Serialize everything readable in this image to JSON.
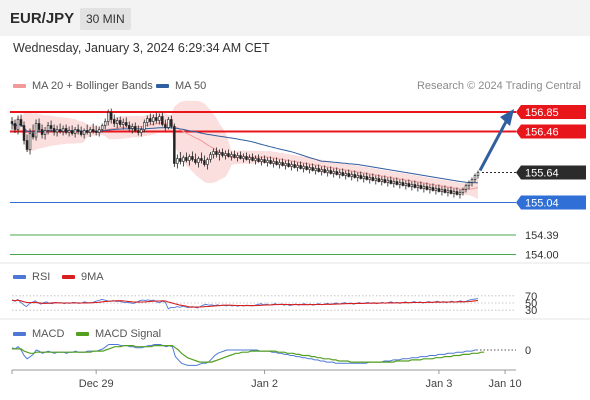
{
  "header": {
    "symbol": "EUR/JPY",
    "timeframe": "30 MIN"
  },
  "datetime": "Wednesday, January 3, 2024 6:29:34 AM CET",
  "credit": "Research © 2024 Trading Central",
  "colors": {
    "bollinger": "#f29a9a",
    "bollinger_band": "#fbdede",
    "ma50": "#2f5f9e",
    "resistance": "#e8151b",
    "support_blue": "#2f6fd6",
    "support_green": "#4aa84a",
    "rsi": "#4f78d6",
    "rsi_ma": "#d62020",
    "macd": "#4f78d6",
    "macd_signal": "#54a020",
    "current": "#2b2b2b",
    "arrow": "#2f5f9e"
  },
  "legend_main": [
    {
      "label": "MA 20 + Bollinger Bands",
      "color": "#f29a9a"
    },
    {
      "label": "MA 50",
      "color": "#2f5f9e"
    }
  ],
  "legend_rsi": [
    {
      "label": "RSI",
      "color": "#4f78d6"
    },
    {
      "label": "9MA",
      "color": "#d62020"
    }
  ],
  "legend_macd": [
    {
      "label": "MACD",
      "color": "#4f78d6"
    },
    {
      "label": "MACD Signal",
      "color": "#54a020"
    }
  ],
  "chart_data": {
    "type": "candlestick",
    "price_range": [
      153.85,
      157.15
    ],
    "levels": [
      {
        "value": "156.85",
        "kind": "resistance",
        "color": "#e8151b"
      },
      {
        "value": "156.46",
        "kind": "resistance",
        "color": "#e8151b"
      },
      {
        "value": "155.64",
        "kind": "current",
        "color": "#2b2b2b"
      },
      {
        "value": "155.04",
        "kind": "support",
        "color": "#2f6fd6"
      },
      {
        "value": "154.39",
        "kind": "support",
        "color": "#4aa84a"
      },
      {
        "value": "154.00",
        "kind": "support",
        "color": "#4aa84a"
      }
    ],
    "forecast_target": 156.85,
    "x_labels": [
      "Dec 29",
      "Jan 2",
      "Jan 3",
      "Jan 10"
    ],
    "x_label_bar_index": [
      28,
      84,
      142,
      164
    ],
    "candles": [
      [
        156.66,
        156.75,
        156.5,
        156.62
      ],
      [
        156.62,
        156.7,
        156.43,
        156.5
      ],
      [
        156.5,
        156.78,
        156.4,
        156.7
      ],
      [
        156.7,
        156.8,
        156.55,
        156.58
      ],
      [
        156.58,
        156.66,
        156.2,
        156.28
      ],
      [
        156.28,
        156.4,
        156.05,
        156.1
      ],
      [
        156.1,
        156.52,
        156.0,
        156.42
      ],
      [
        156.42,
        156.6,
        156.3,
        156.35
      ],
      [
        156.35,
        156.7,
        156.28,
        156.62
      ],
      [
        156.62,
        156.72,
        156.44,
        156.5
      ],
      [
        156.5,
        156.6,
        156.32,
        156.4
      ],
      [
        156.4,
        156.55,
        156.3,
        156.48
      ],
      [
        156.48,
        156.65,
        156.4,
        156.58
      ],
      [
        156.58,
        156.68,
        156.45,
        156.52
      ],
      [
        156.52,
        156.6,
        156.38,
        156.45
      ],
      [
        156.45,
        156.58,
        156.36,
        156.5
      ],
      [
        156.5,
        156.62,
        156.42,
        156.46
      ],
      [
        156.46,
        156.58,
        156.38,
        156.52
      ],
      [
        156.52,
        156.6,
        156.4,
        156.44
      ],
      [
        156.44,
        156.56,
        156.36,
        156.48
      ],
      [
        156.48,
        156.58,
        156.38,
        156.42
      ],
      [
        156.42,
        156.55,
        156.34,
        156.5
      ],
      [
        156.5,
        156.6,
        156.4,
        156.46
      ],
      [
        156.46,
        156.56,
        156.36,
        156.4
      ],
      [
        156.4,
        156.52,
        156.32,
        156.48
      ],
      [
        156.48,
        156.6,
        156.4,
        156.44
      ],
      [
        156.44,
        156.55,
        156.35,
        156.5
      ],
      [
        156.5,
        156.62,
        156.42,
        156.46
      ],
      [
        156.46,
        156.58,
        156.38,
        156.44
      ],
      [
        156.44,
        156.56,
        156.36,
        156.5
      ],
      [
        156.5,
        156.62,
        156.44,
        156.58
      ],
      [
        156.58,
        156.72,
        156.5,
        156.66
      ],
      [
        156.66,
        156.9,
        156.58,
        156.84
      ],
      [
        156.84,
        156.92,
        156.62,
        156.7
      ],
      [
        156.7,
        156.8,
        156.55,
        156.62
      ],
      [
        156.62,
        156.74,
        156.52,
        156.68
      ],
      [
        156.68,
        156.76,
        156.55,
        156.6
      ],
      [
        156.6,
        156.72,
        156.5,
        156.64
      ],
      [
        156.64,
        156.74,
        156.54,
        156.58
      ],
      [
        156.58,
        156.66,
        156.46,
        156.52
      ],
      [
        156.52,
        156.62,
        156.42,
        156.56
      ],
      [
        156.56,
        156.64,
        156.44,
        156.48
      ],
      [
        156.48,
        156.58,
        156.38,
        156.44
      ],
      [
        156.44,
        156.56,
        156.36,
        156.5
      ],
      [
        156.5,
        156.7,
        156.44,
        156.64
      ],
      [
        156.64,
        156.78,
        156.56,
        156.72
      ],
      [
        156.72,
        156.82,
        156.6,
        156.66
      ],
      [
        156.66,
        156.8,
        156.58,
        156.74
      ],
      [
        156.74,
        156.84,
        156.62,
        156.68
      ],
      [
        156.68,
        156.82,
        156.6,
        156.76
      ],
      [
        156.76,
        156.84,
        156.56,
        156.6
      ],
      [
        156.6,
        156.7,
        156.48,
        156.54
      ],
      [
        156.54,
        156.75,
        156.5,
        156.7
      ],
      [
        156.7,
        156.78,
        156.52,
        156.56
      ],
      [
        156.56,
        156.62,
        155.75,
        155.82
      ],
      [
        155.82,
        156.0,
        155.72,
        155.92
      ],
      [
        155.92,
        156.05,
        155.8,
        155.86
      ],
      [
        155.86,
        155.98,
        155.76,
        155.94
      ],
      [
        155.94,
        156.04,
        155.84,
        155.88
      ],
      [
        155.88,
        156.0,
        155.78,
        155.96
      ],
      [
        155.96,
        156.06,
        155.86,
        155.9
      ],
      [
        155.9,
        156.02,
        155.8,
        155.84
      ],
      [
        155.84,
        155.96,
        155.74,
        155.92
      ],
      [
        155.92,
        156.04,
        155.82,
        155.88
      ],
      [
        155.88,
        155.98,
        155.76,
        155.8
      ],
      [
        155.8,
        155.94,
        155.7,
        155.9
      ],
      [
        155.9,
        156.05,
        155.84,
        156.0
      ],
      [
        156.0,
        156.12,
        155.92,
        156.06
      ],
      [
        156.06,
        156.14,
        155.94,
        156.0
      ],
      [
        156.0,
        156.1,
        155.88,
        156.04
      ],
      [
        156.04,
        156.12,
        155.94,
        155.98
      ],
      [
        155.98,
        156.08,
        155.9,
        156.02
      ],
      [
        156.02,
        156.1,
        155.94,
        155.96
      ],
      [
        155.96,
        156.06,
        155.88,
        156.0
      ],
      [
        156.0,
        156.08,
        155.92,
        155.94
      ],
      [
        155.94,
        156.04,
        155.86,
        155.98
      ],
      [
        155.98,
        156.06,
        155.9,
        155.92
      ],
      [
        155.92,
        156.02,
        155.84,
        155.96
      ],
      [
        155.96,
        156.04,
        155.88,
        155.9
      ],
      [
        155.9,
        156.0,
        155.82,
        155.94
      ],
      [
        155.94,
        156.02,
        155.86,
        155.88
      ],
      [
        155.88,
        155.98,
        155.8,
        155.92
      ],
      [
        155.92,
        156.0,
        155.84,
        155.86
      ],
      [
        155.86,
        155.96,
        155.78,
        155.9
      ],
      [
        155.9,
        155.98,
        155.82,
        155.84
      ],
      [
        155.84,
        155.94,
        155.76,
        155.88
      ],
      [
        155.88,
        155.96,
        155.8,
        155.82
      ],
      [
        155.82,
        155.92,
        155.74,
        155.86
      ],
      [
        155.86,
        155.94,
        155.78,
        155.8
      ],
      [
        155.8,
        155.9,
        155.72,
        155.84
      ],
      [
        155.84,
        155.92,
        155.76,
        155.78
      ],
      [
        155.78,
        155.88,
        155.7,
        155.82
      ],
      [
        155.82,
        155.9,
        155.74,
        155.76
      ],
      [
        155.76,
        155.86,
        155.68,
        155.8
      ],
      [
        155.8,
        155.88,
        155.72,
        155.74
      ],
      [
        155.74,
        155.84,
        155.66,
        155.78
      ],
      [
        155.78,
        155.86,
        155.7,
        155.72
      ],
      [
        155.72,
        155.82,
        155.64,
        155.76
      ],
      [
        155.76,
        155.84,
        155.68,
        155.7
      ],
      [
        155.7,
        155.8,
        155.62,
        155.74
      ],
      [
        155.74,
        155.82,
        155.66,
        155.68
      ],
      [
        155.68,
        155.78,
        155.6,
        155.72
      ],
      [
        155.72,
        155.8,
        155.64,
        155.66
      ],
      [
        155.66,
        155.76,
        155.58,
        155.7
      ],
      [
        155.7,
        155.78,
        155.62,
        155.64
      ],
      [
        155.64,
        155.74,
        155.56,
        155.68
      ],
      [
        155.68,
        155.76,
        155.6,
        155.62
      ],
      [
        155.62,
        155.72,
        155.54,
        155.66
      ],
      [
        155.66,
        155.74,
        155.58,
        155.6
      ],
      [
        155.6,
        155.7,
        155.52,
        155.64
      ],
      [
        155.64,
        155.72,
        155.56,
        155.58
      ],
      [
        155.58,
        155.68,
        155.5,
        155.62
      ],
      [
        155.62,
        155.7,
        155.54,
        155.56
      ],
      [
        155.56,
        155.66,
        155.48,
        155.6
      ],
      [
        155.6,
        155.68,
        155.52,
        155.54
      ],
      [
        155.54,
        155.64,
        155.46,
        155.58
      ],
      [
        155.58,
        155.66,
        155.5,
        155.52
      ],
      [
        155.52,
        155.62,
        155.44,
        155.56
      ],
      [
        155.56,
        155.64,
        155.48,
        155.5
      ],
      [
        155.5,
        155.6,
        155.42,
        155.54
      ],
      [
        155.54,
        155.62,
        155.46,
        155.48
      ],
      [
        155.48,
        155.58,
        155.4,
        155.52
      ],
      [
        155.52,
        155.6,
        155.44,
        155.46
      ],
      [
        155.46,
        155.56,
        155.38,
        155.5
      ],
      [
        155.5,
        155.58,
        155.42,
        155.44
      ],
      [
        155.44,
        155.54,
        155.36,
        155.48
      ],
      [
        155.48,
        155.56,
        155.4,
        155.42
      ],
      [
        155.42,
        155.52,
        155.34,
        155.46
      ],
      [
        155.46,
        155.54,
        155.38,
        155.4
      ],
      [
        155.4,
        155.5,
        155.32,
        155.44
      ],
      [
        155.44,
        155.52,
        155.36,
        155.38
      ],
      [
        155.38,
        155.48,
        155.3,
        155.42
      ],
      [
        155.42,
        155.5,
        155.34,
        155.36
      ],
      [
        155.36,
        155.46,
        155.28,
        155.4
      ],
      [
        155.4,
        155.48,
        155.32,
        155.34
      ],
      [
        155.34,
        155.44,
        155.26,
        155.38
      ],
      [
        155.38,
        155.46,
        155.3,
        155.32
      ],
      [
        155.32,
        155.42,
        155.24,
        155.36
      ],
      [
        155.36,
        155.44,
        155.28,
        155.3
      ],
      [
        155.3,
        155.4,
        155.22,
        155.34
      ],
      [
        155.34,
        155.42,
        155.26,
        155.28
      ],
      [
        155.28,
        155.38,
        155.2,
        155.32
      ],
      [
        155.32,
        155.4,
        155.24,
        155.26
      ],
      [
        155.26,
        155.36,
        155.18,
        155.3
      ],
      [
        155.3,
        155.38,
        155.22,
        155.24
      ],
      [
        155.24,
        155.34,
        155.16,
        155.28
      ],
      [
        155.28,
        155.36,
        155.2,
        155.22
      ],
      [
        155.22,
        155.32,
        155.14,
        155.26
      ],
      [
        155.26,
        155.34,
        155.18,
        155.2
      ],
      [
        155.2,
        155.3,
        155.12,
        155.24
      ],
      [
        155.24,
        155.34,
        155.18,
        155.3
      ],
      [
        155.3,
        155.42,
        155.24,
        155.38
      ],
      [
        155.38,
        155.48,
        155.3,
        155.44
      ],
      [
        155.44,
        155.54,
        155.36,
        155.5
      ],
      [
        155.5,
        155.62,
        155.44,
        155.58
      ],
      [
        155.58,
        155.68,
        155.52,
        155.64
      ]
    ],
    "rsi": [
      58,
      55,
      60,
      52,
      45,
      40,
      48,
      52,
      56,
      50,
      47,
      51,
      53,
      49,
      48,
      52,
      50,
      51,
      48,
      50,
      49,
      52,
      51,
      49,
      50,
      53,
      51,
      50,
      52,
      55,
      57,
      60,
      58,
      56,
      55,
      57,
      54,
      55,
      53,
      51,
      52,
      50,
      49,
      52,
      56,
      58,
      57,
      59,
      57,
      58,
      53,
      51,
      55,
      52,
      34,
      38,
      37,
      40,
      38,
      41,
      39,
      37,
      40,
      39,
      36,
      40,
      44,
      46,
      44,
      45,
      43,
      45,
      43,
      44,
      42,
      44,
      42,
      43,
      41,
      43,
      42,
      44,
      43,
      42,
      44,
      46,
      48,
      45,
      47,
      44,
      46,
      48,
      45,
      47,
      44,
      46,
      43,
      45,
      47,
      44,
      46,
      48,
      45,
      47,
      44,
      46,
      48,
      45,
      47,
      49,
      46,
      48,
      50,
      47,
      49,
      51,
      48,
      50,
      47,
      49,
      51,
      48,
      50,
      52,
      49,
      51,
      48,
      50,
      52,
      49,
      51,
      53,
      50,
      52,
      49,
      51,
      53,
      50,
      52,
      54,
      51,
      53,
      50,
      52,
      54,
      51,
      53,
      55,
      52,
      54,
      51,
      53,
      55,
      52,
      54,
      56,
      53,
      55,
      58,
      60,
      61,
      62
    ],
    "macd": [
      0.02,
      0.01,
      0.03,
      0.0,
      -0.05,
      -0.08,
      -0.06,
      -0.04,
      0.0,
      -0.01,
      -0.03,
      -0.02,
      -0.01,
      -0.02,
      -0.03,
      -0.02,
      -0.02,
      -0.02,
      -0.03,
      -0.02,
      -0.02,
      -0.01,
      -0.02,
      -0.02,
      -0.02,
      -0.01,
      -0.01,
      -0.01,
      -0.01,
      0.0,
      0.01,
      0.03,
      0.05,
      0.05,
      0.05,
      0.05,
      0.04,
      0.04,
      0.04,
      0.03,
      0.03,
      0.02,
      0.02,
      0.02,
      0.03,
      0.04,
      0.04,
      0.05,
      0.05,
      0.05,
      0.04,
      0.03,
      0.04,
      0.03,
      -0.06,
      -0.09,
      -0.12,
      -0.13,
      -0.14,
      -0.14,
      -0.14,
      -0.14,
      -0.13,
      -0.12,
      -0.12,
      -0.11,
      -0.08,
      -0.05,
      -0.03,
      -0.02,
      -0.01,
      0.0,
      0.0,
      0.0,
      0.0,
      0.0,
      0.0,
      0.0,
      0.0,
      0.0,
      0.0,
      0.0,
      -0.01,
      -0.01,
      -0.01,
      -0.01,
      -0.02,
      -0.02,
      -0.03,
      -0.03,
      -0.04,
      -0.04,
      -0.05,
      -0.05,
      -0.06,
      -0.06,
      -0.07,
      -0.07,
      -0.08,
      -0.08,
      -0.09,
      -0.09,
      -0.1,
      -0.1,
      -0.11,
      -0.11,
      -0.11,
      -0.12,
      -0.12,
      -0.12,
      -0.12,
      -0.12,
      -0.12,
      -0.12,
      -0.12,
      -0.12,
      -0.12,
      -0.12,
      -0.11,
      -0.11,
      -0.11,
      -0.11,
      -0.11,
      -0.1,
      -0.1,
      -0.1,
      -0.09,
      -0.09,
      -0.09,
      -0.08,
      -0.08,
      -0.08,
      -0.07,
      -0.07,
      -0.07,
      -0.06,
      -0.06,
      -0.06,
      -0.05,
      -0.05,
      -0.05,
      -0.04,
      -0.04,
      -0.04,
      -0.03,
      -0.03,
      -0.03,
      -0.02,
      -0.02,
      -0.02,
      -0.01,
      -0.01,
      -0.01,
      0.0,
      0.0
    ],
    "macd_signal": [
      0.01,
      0.01,
      0.01,
      0.01,
      -0.01,
      -0.02,
      -0.03,
      -0.03,
      -0.02,
      -0.02,
      -0.02,
      -0.02,
      -0.02,
      -0.02,
      -0.02,
      -0.02,
      -0.02,
      -0.02,
      -0.02,
      -0.02,
      -0.02,
      -0.02,
      -0.02,
      -0.02,
      -0.02,
      -0.02,
      -0.02,
      -0.01,
      -0.01,
      -0.01,
      -0.01,
      0.0,
      0.01,
      0.02,
      0.03,
      0.03,
      0.03,
      0.04,
      0.04,
      0.04,
      0.04,
      0.03,
      0.03,
      0.03,
      0.03,
      0.03,
      0.03,
      0.04,
      0.04,
      0.04,
      0.04,
      0.04,
      0.04,
      0.04,
      0.02,
      0.0,
      -0.03,
      -0.05,
      -0.07,
      -0.08,
      -0.09,
      -0.1,
      -0.11,
      -0.11,
      -0.11,
      -0.11,
      -0.11,
      -0.1,
      -0.09,
      -0.08,
      -0.07,
      -0.06,
      -0.05,
      -0.04,
      -0.03,
      -0.03,
      -0.02,
      -0.02,
      -0.02,
      -0.01,
      -0.01,
      -0.01,
      -0.01,
      -0.01,
      -0.01,
      -0.01,
      -0.01,
      -0.01,
      -0.02,
      -0.02,
      -0.02,
      -0.03,
      -0.03,
      -0.03,
      -0.04,
      -0.04,
      -0.05,
      -0.05,
      -0.05,
      -0.06,
      -0.06,
      -0.07,
      -0.07,
      -0.08,
      -0.08,
      -0.08,
      -0.09,
      -0.09,
      -0.1,
      -0.1,
      -0.1,
      -0.1,
      -0.11,
      -0.11,
      -0.11,
      -0.11,
      -0.11,
      -0.11,
      -0.11,
      -0.11,
      -0.11,
      -0.11,
      -0.11,
      -0.11,
      -0.11,
      -0.11,
      -0.11,
      -0.1,
      -0.1,
      -0.1,
      -0.1,
      -0.1,
      -0.09,
      -0.09,
      -0.09,
      -0.09,
      -0.08,
      -0.08,
      -0.08,
      -0.08,
      -0.07,
      -0.07,
      -0.07,
      -0.06,
      -0.06,
      -0.06,
      -0.05,
      -0.05,
      -0.05,
      -0.04,
      -0.04,
      -0.04,
      -0.03,
      -0.03,
      -0.03,
      -0.02,
      -0.02
    ],
    "rsi_levels": [
      "70",
      "50",
      "30"
    ],
    "macd_zero_label": "0"
  }
}
